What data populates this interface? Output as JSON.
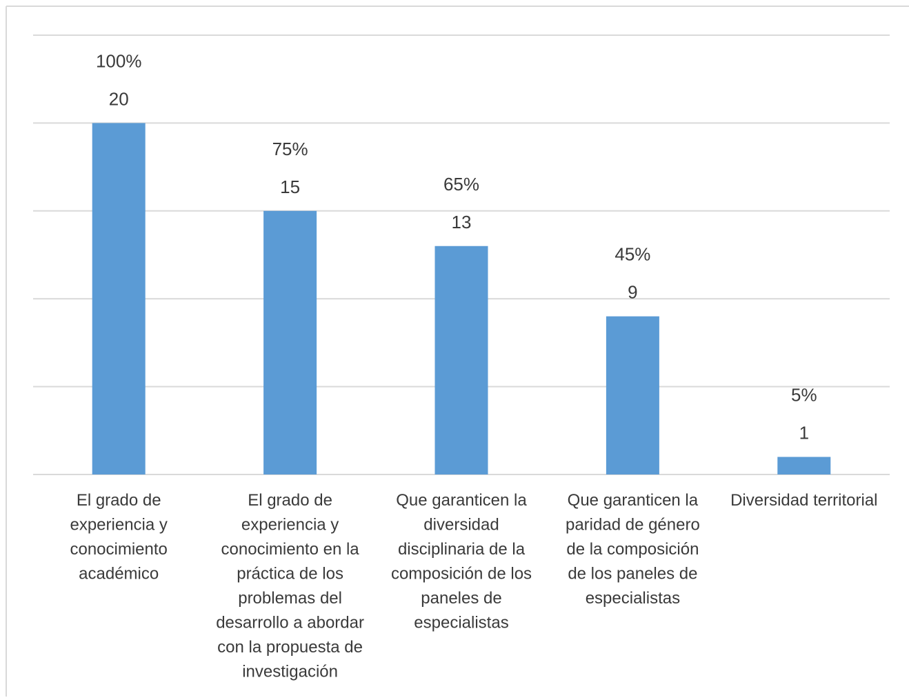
{
  "chart_data": {
    "type": "bar",
    "categories": [
      [
        "El grado de",
        "experiencia y",
        "conocimiento",
        "académico"
      ],
      [
        "El grado de",
        "experiencia y",
        "conocimiento en la",
        "práctica de los",
        "problemas del",
        "desarrollo a abordar",
        "con la propuesta de",
        "investigación"
      ],
      [
        "Que garanticen la",
        "diversidad",
        "disciplinaria de la",
        "composición de los",
        "paneles de",
        "especialistas"
      ],
      [
        "Que garanticen la",
        "paridad de género",
        "de la composición",
        "de los paneles de",
        "especialistas"
      ],
      [
        "Diversidad territorial"
      ]
    ],
    "values": [
      20,
      15,
      13,
      9,
      1
    ],
    "percent_labels": [
      "100%",
      "75%",
      "65%",
      "45%",
      "5%"
    ],
    "value_labels": [
      "20",
      "15",
      "13",
      "9",
      "1"
    ],
    "ylim": [
      0,
      25
    ],
    "grid": true,
    "bar_color": "#5b9bd5",
    "grid_color": "#d9d9d9",
    "frame_color": "#d9d9d9"
  }
}
